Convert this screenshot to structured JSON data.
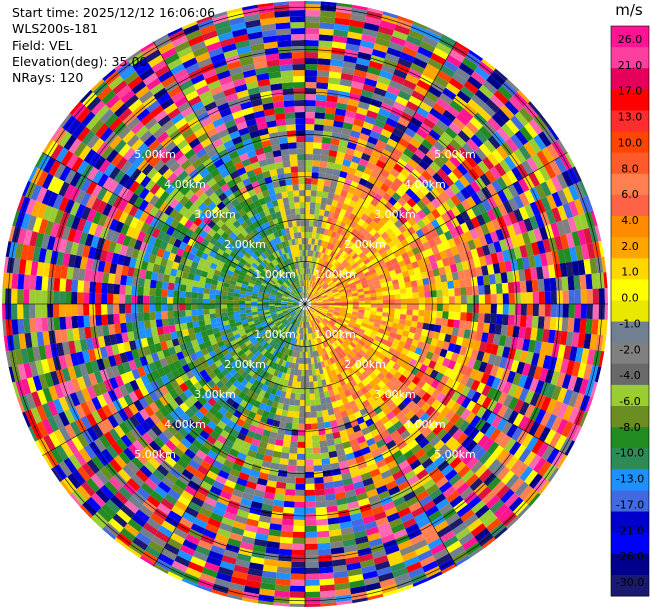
{
  "header": {
    "start_time": "Start time: 2025/12/12 16:06:06",
    "instrument": "WLS200s-181",
    "field": "Field: VEL",
    "elevation": "Elevation(deg): 35.00",
    "nrays": "NRays: 120"
  },
  "range_rings": {
    "labels": [
      "1.00km",
      "2.00km",
      "3.00km",
      "4.00km",
      "5.00km"
    ]
  },
  "colorbar": {
    "unit": "m/s",
    "ticks": [
      "26.0",
      "21.0",
      "17.0",
      "13.0",
      "10.0",
      "8.0",
      "6.0",
      "4.0",
      "2.0",
      "1.0",
      "0.0",
      "-1.0",
      "-2.0",
      "-4.0",
      "-6.0",
      "-8.0",
      "-10.0",
      "-13.0",
      "-17.0",
      "-21.0",
      "-26.0",
      "-30.0"
    ],
    "colors": [
      "#ff1493",
      "#ff3fa0",
      "#e6005c",
      "#ff0000",
      "#ff2d2d",
      "#ff4500",
      "#ff5a2a",
      "#ff7f50",
      "#ff6347",
      "#ff8c00",
      "#ffa500",
      "#ffd700",
      "#ffff00",
      "#e8e800",
      "#708090",
      "#808080",
      "#696969",
      "#9acd32",
      "#6b8e23",
      "#228b22",
      "#2e8b57",
      "#1e90ff",
      "#4169e1",
      "#0000cd",
      "#0000ff",
      "#00008b",
      "#191970"
    ]
  }
}
